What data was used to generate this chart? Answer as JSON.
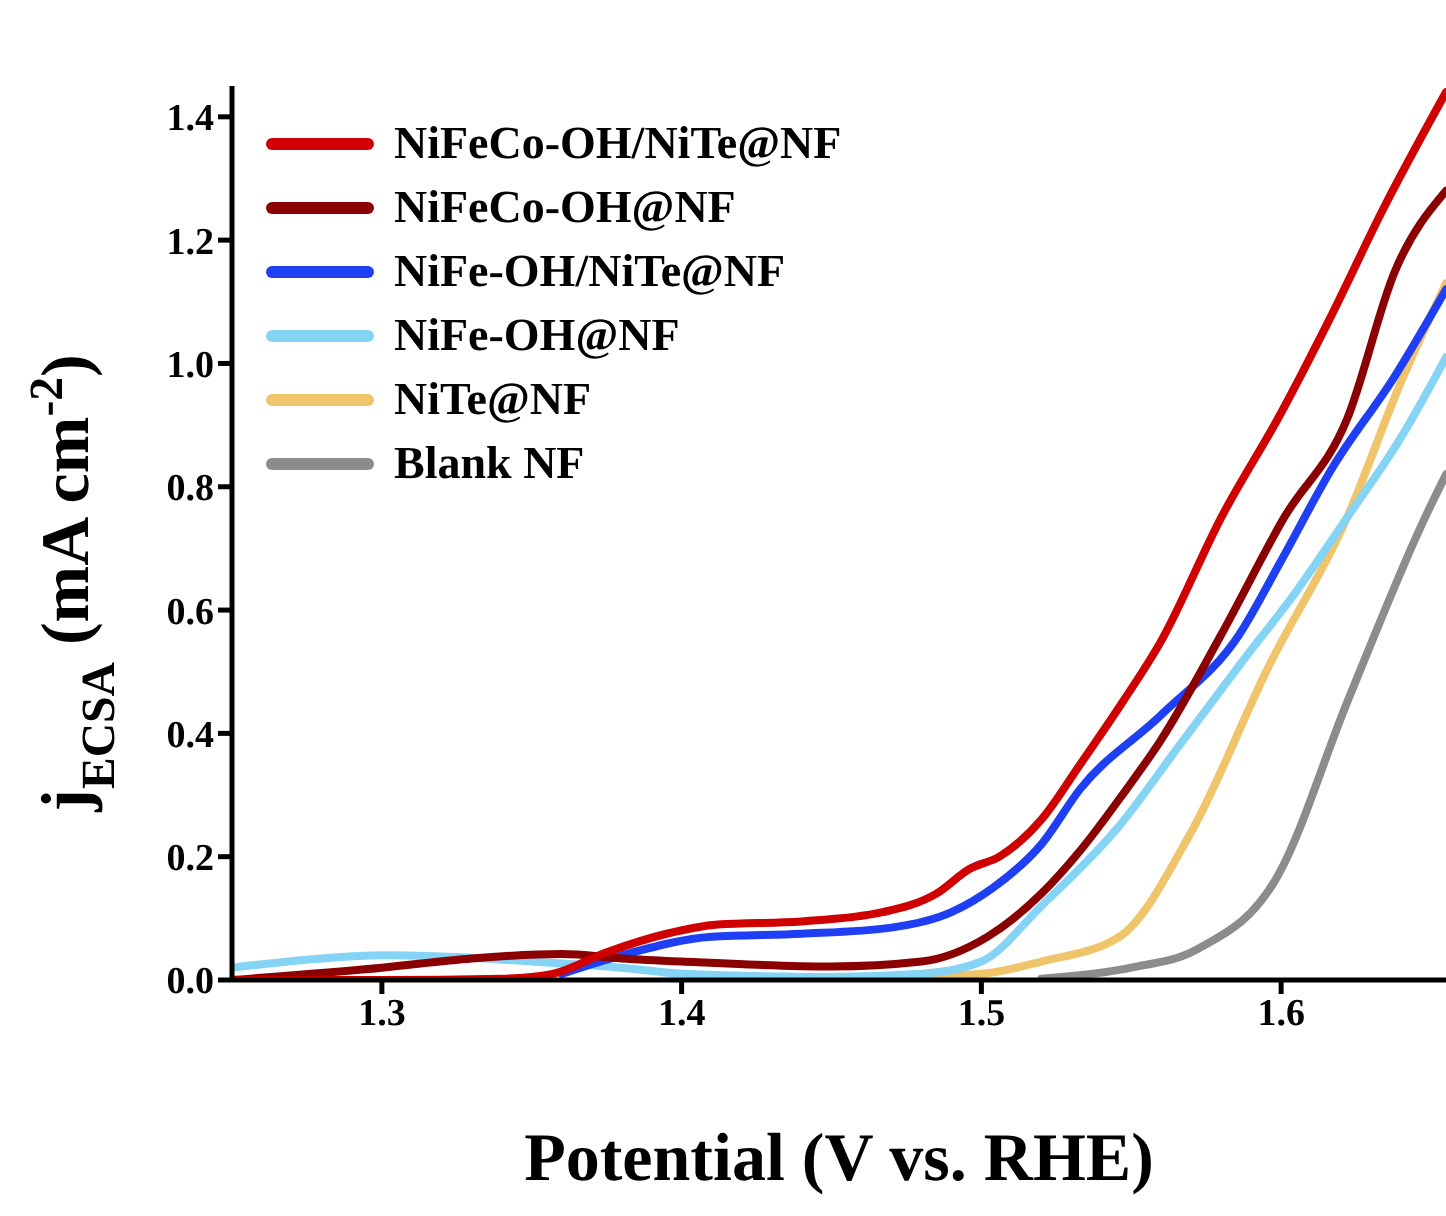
{
  "chart_data": {
    "type": "line",
    "xlabel": "Potential (V vs. RHE)",
    "ylabel": "j$_{ECSA}$ (mA cm$^{-2}$)",
    "xlim": [
      1.25,
      1.655
    ],
    "ylim": [
      0,
      1.45
    ],
    "xticks": [
      1.3,
      1.4,
      1.5,
      1.6
    ],
    "yticks": [
      {
        "value": 0,
        "label": "0.0"
      },
      0.2,
      0.4,
      0.6,
      0.8,
      {
        "value": 1,
        "label": "1.0"
      },
      1.2,
      1.4
    ],
    "grid": false,
    "legend": "top left",
    "marker": "none",
    "line_style": "solid",
    "series": [
      {
        "name": "NiFeCo-OH/NiTe@NF",
        "color": "#d00000",
        "x": [
          1.25,
          1.3,
          1.34,
          1.357,
          1.375,
          1.395,
          1.412,
          1.44,
          1.467,
          1.485,
          1.496,
          1.506,
          1.52,
          1.533,
          1.547,
          1.56,
          1.58,
          1.6,
          1.617,
          1.634,
          1.655
        ],
        "values": [
          0,
          0,
          0.002,
          0.01,
          0.045,
          0.075,
          0.09,
          0.095,
          0.11,
          0.14,
          0.18,
          0.2,
          0.26,
          0.35,
          0.45,
          0.55,
          0.75,
          0.92,
          1.08,
          1.25,
          1.44
        ]
      },
      {
        "name": "NiFeCo-OH@NF",
        "color": "#8b0000",
        "x": [
          1.25,
          1.3,
          1.33,
          1.36,
          1.38,
          1.4,
          1.45,
          1.48,
          1.502,
          1.52,
          1.533,
          1.547,
          1.56,
          1.58,
          1.601,
          1.622,
          1.638,
          1.655
        ],
        "values": [
          0,
          0.02,
          0.035,
          0.042,
          0.035,
          0.03,
          0.022,
          0.03,
          0.07,
          0.14,
          0.21,
          0.3,
          0.39,
          0.56,
          0.75,
          0.91,
          1.15,
          1.28
        ]
      },
      {
        "name": "NiFe-OH/NiTe@NF",
        "color": "#1f3ff5",
        "x": [
          1.36,
          1.38,
          1.41,
          1.44,
          1.47,
          1.49,
          1.504,
          1.52,
          1.533,
          1.56,
          1.586,
          1.6,
          1.617,
          1.638,
          1.655
        ],
        "values": [
          0.01,
          0.04,
          0.07,
          0.075,
          0.085,
          0.11,
          0.15,
          0.22,
          0.31,
          0.43,
          0.56,
          0.68,
          0.83,
          0.98,
          1.12
        ]
      },
      {
        "name": "NiFe-OH@NF",
        "color": "#85d4f5",
        "x": [
          1.25,
          1.28,
          1.3,
          1.32,
          1.35,
          1.38,
          1.4,
          1.45,
          1.48,
          1.5,
          1.52,
          1.546,
          1.566,
          1.586,
          1.605,
          1.622,
          1.64,
          1.655
        ],
        "values": [
          0.02,
          0.035,
          0.04,
          0.038,
          0.03,
          0.02,
          0.01,
          0.005,
          0.01,
          0.03,
          0.12,
          0.25,
          0.38,
          0.51,
          0.63,
          0.75,
          0.88,
          1.01
        ]
      },
      {
        "name": "NiTe@NF",
        "color": "#f0c46a",
        "x": [
          1.45,
          1.5,
          1.52,
          1.546,
          1.57,
          1.596,
          1.622,
          1.64,
          1.655
        ],
        "values": [
          0.001,
          0.01,
          0.03,
          0.07,
          0.24,
          0.51,
          0.75,
          0.97,
          1.13
        ]
      },
      {
        "name": "Blank NF",
        "color": "#8c8c8c",
        "x": [
          1.52,
          1.55,
          1.572,
          1.599,
          1.622,
          1.648,
          1.655
        ],
        "values": [
          0.002,
          0.02,
          0.05,
          0.17,
          0.45,
          0.75,
          0.82
        ]
      }
    ]
  }
}
